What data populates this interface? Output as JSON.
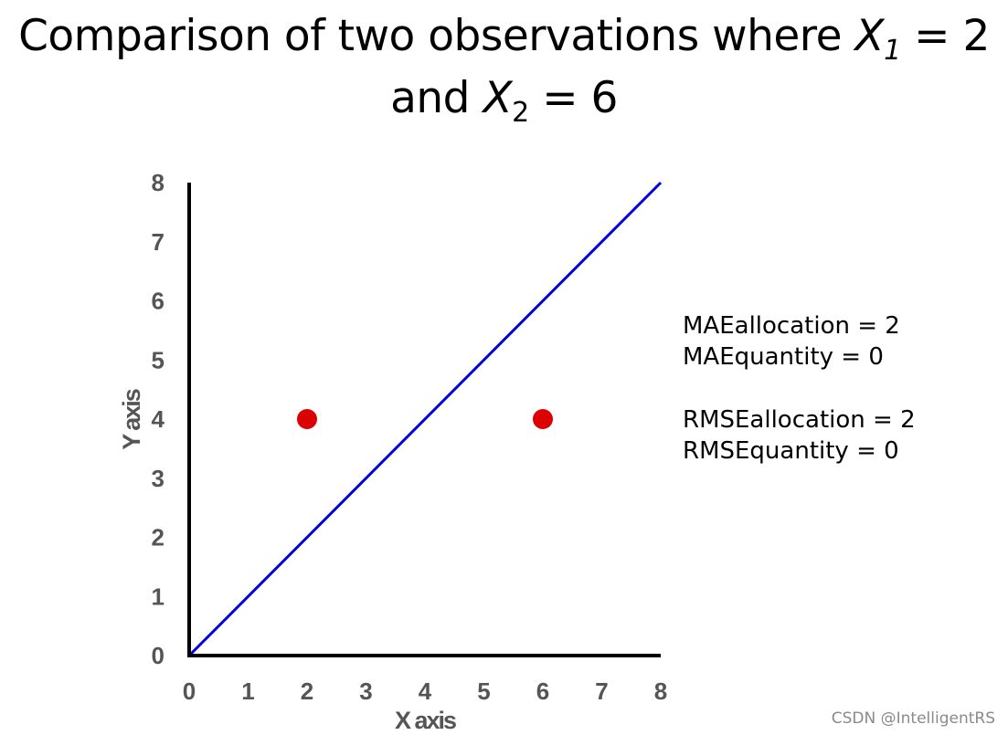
{
  "title": {
    "line1_prefix": "Comparison of two observations where ",
    "var1_letter": "X",
    "var1_sub": "1",
    "var1_value": " = 2",
    "line2_prefix": "and ",
    "var2_letter": "X",
    "var2_sub": "2",
    "var2_value": " = 6"
  },
  "stats": {
    "mae_allocation": "MAEallocation = 2",
    "mae_quantity": "MAEquantity = 0",
    "rmse_allocation": "RMSEallocation = 2",
    "rmse_quantity": "RMSEquantity = 0"
  },
  "watermark": "CSDN @IntelligentRS",
  "colors": {
    "line": "#0000dd",
    "points": "#dd0000",
    "axis": "#000000",
    "tick_text": "#555555"
  },
  "chart_data": {
    "type": "scatter",
    "xlabel": "X axis",
    "ylabel": "Y axis",
    "xlim": [
      0,
      8
    ],
    "ylim": [
      0,
      8
    ],
    "xticks": [
      0,
      1,
      2,
      3,
      4,
      5,
      6,
      7,
      8
    ],
    "yticks": [
      0,
      1,
      2,
      3,
      4,
      5,
      6,
      7,
      8
    ],
    "grid": false,
    "points": [
      {
        "x": 2,
        "y": 4
      },
      {
        "x": 6,
        "y": 4
      }
    ],
    "reference_line": {
      "from": [
        0,
        0
      ],
      "to": [
        8,
        8
      ]
    }
  }
}
